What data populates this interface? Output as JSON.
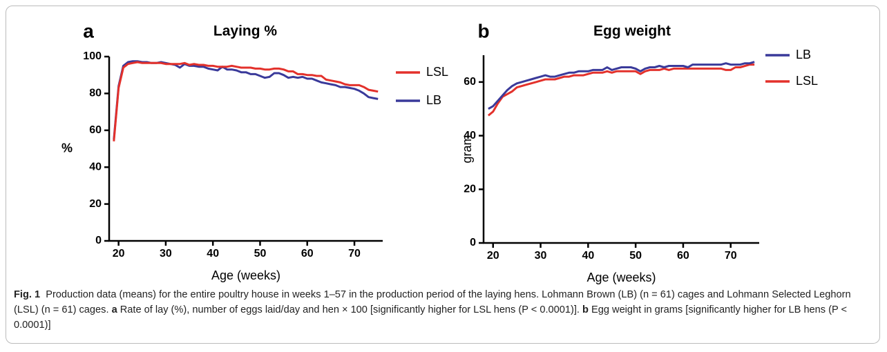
{
  "chart_data": [
    {
      "type": "line",
      "panel": "a",
      "title": "Laying %",
      "x_label": "Age (weeks)",
      "y_label": "%",
      "x": [
        19,
        20,
        21,
        22,
        23,
        24,
        25,
        26,
        27,
        28,
        29,
        30,
        31,
        32,
        33,
        34,
        35,
        36,
        37,
        38,
        39,
        40,
        41,
        42,
        43,
        44,
        45,
        46,
        47,
        48,
        49,
        50,
        51,
        52,
        53,
        54,
        55,
        56,
        57,
        58,
        59,
        60,
        61,
        62,
        63,
        64,
        65,
        66,
        67,
        68,
        69,
        70,
        71,
        72,
        73,
        74,
        75
      ],
      "series": [
        {
          "name": "LSL",
          "color": "#e3312b",
          "values": [
            54,
            83,
            94,
            96,
            96.5,
            97,
            96.5,
            96.5,
            96.5,
            96.5,
            96.5,
            96,
            96,
            96,
            96,
            96.5,
            95.5,
            96,
            95.5,
            95.5,
            95,
            95,
            94.5,
            94.5,
            94.5,
            95,
            94.5,
            94,
            94,
            94,
            93.5,
            93.5,
            93,
            93,
            93.5,
            93.5,
            93,
            92,
            92,
            90.5,
            90.5,
            90,
            90,
            89.5,
            89.5,
            87.5,
            87,
            86.5,
            86,
            85,
            84.5,
            84.5,
            84.5,
            83.5,
            82,
            81.5,
            81
          ]
        },
        {
          "name": "LB",
          "color": "#3a3a9a",
          "values": [
            55,
            84,
            95,
            97,
            97.5,
            97.5,
            97,
            97,
            96.5,
            96.5,
            97,
            96.5,
            96,
            95.5,
            94,
            96,
            95,
            95,
            94.5,
            94.5,
            93.5,
            93,
            92.5,
            94.5,
            93,
            93,
            92.5,
            91.5,
            91.5,
            90.5,
            90.5,
            89.5,
            88.5,
            89,
            91,
            91,
            90,
            88.5,
            89,
            88.5,
            89,
            88,
            88,
            87,
            86,
            85.5,
            85,
            84.5,
            83.5,
            83.5,
            83,
            82.5,
            81.5,
            80,
            78,
            77.5,
            77
          ]
        }
      ],
      "xlim": [
        18,
        76
      ],
      "xticks": [
        20,
        30,
        40,
        50,
        60,
        70
      ],
      "ylim": [
        0,
        100
      ],
      "yticks": [
        0,
        20,
        40,
        60,
        80,
        100
      ],
      "legend": "right"
    },
    {
      "type": "line",
      "panel": "b",
      "title": "Egg weight",
      "x_label": "Age (weeks)",
      "y_label": "gram",
      "x": [
        19,
        20,
        21,
        22,
        23,
        24,
        25,
        26,
        27,
        28,
        29,
        30,
        31,
        32,
        33,
        34,
        35,
        36,
        37,
        38,
        39,
        40,
        41,
        42,
        43,
        44,
        45,
        46,
        47,
        48,
        49,
        50,
        51,
        52,
        53,
        54,
        55,
        56,
        57,
        58,
        59,
        60,
        61,
        62,
        63,
        64,
        65,
        66,
        67,
        68,
        69,
        70,
        71,
        72,
        73,
        74,
        75
      ],
      "series": [
        {
          "name": "LB",
          "color": "#3a3a9a",
          "values": [
            50,
            51,
            53,
            55,
            57,
            58.5,
            59.5,
            60,
            60.5,
            61,
            61.5,
            62,
            62.5,
            62,
            62,
            62.5,
            63,
            63.5,
            63.5,
            64,
            64,
            64,
            64.5,
            64.5,
            64.5,
            65.5,
            64.5,
            65,
            65.5,
            65.5,
            65.5,
            65,
            64,
            65,
            65.5,
            65.5,
            66,
            65.5,
            66,
            66,
            66,
            66,
            65.5,
            66.5,
            66.5,
            66.5,
            66.5,
            66.5,
            66.5,
            66.5,
            67,
            66.5,
            66.5,
            66.5,
            67,
            67,
            67.5
          ]
        },
        {
          "name": "LSL",
          "color": "#e3312b",
          "values": [
            47.5,
            49,
            52,
            54.5,
            55.5,
            56.5,
            58,
            58.5,
            59,
            59.5,
            60,
            60.5,
            61,
            61,
            61,
            61.5,
            62,
            62,
            62.5,
            62.5,
            62.5,
            63,
            63.5,
            63.5,
            63.5,
            64,
            63.5,
            64,
            64,
            64,
            64,
            64,
            63,
            64,
            64.5,
            64.5,
            64.5,
            65,
            64.5,
            65,
            65,
            65,
            65,
            65,
            65,
            65,
            65,
            65,
            65,
            65,
            64.5,
            64.5,
            65.5,
            65.5,
            66,
            66.5,
            66.5
          ]
        }
      ],
      "xlim": [
        18,
        76
      ],
      "xticks": [
        20,
        30,
        40,
        50,
        60,
        70
      ],
      "ylim": [
        0,
        70
      ],
      "yticks": [
        0,
        20,
        40,
        60
      ],
      "legend": "right"
    }
  ],
  "caption": [
    {
      "text": "Fig. 1",
      "bold": true
    },
    {
      "text": "  Production data (means) for the entire poultry house in weeks 1–57 in the production period of the laying hens. Lohmann Brown (LB) (n = 61) cages and Lohmann Selected Leghorn (LSL) (n = 61) cages. "
    },
    {
      "text": "a",
      "bold": true
    },
    {
      "text": " Rate of lay (%), number of eggs laid/day and hen × 100 [significantly higher for LSL hens (P < 0.0001)]. "
    },
    {
      "text": "b",
      "bold": true
    },
    {
      "text": " Egg weight in grams [significantly higher for LB hens (P < 0.0001)]"
    }
  ]
}
